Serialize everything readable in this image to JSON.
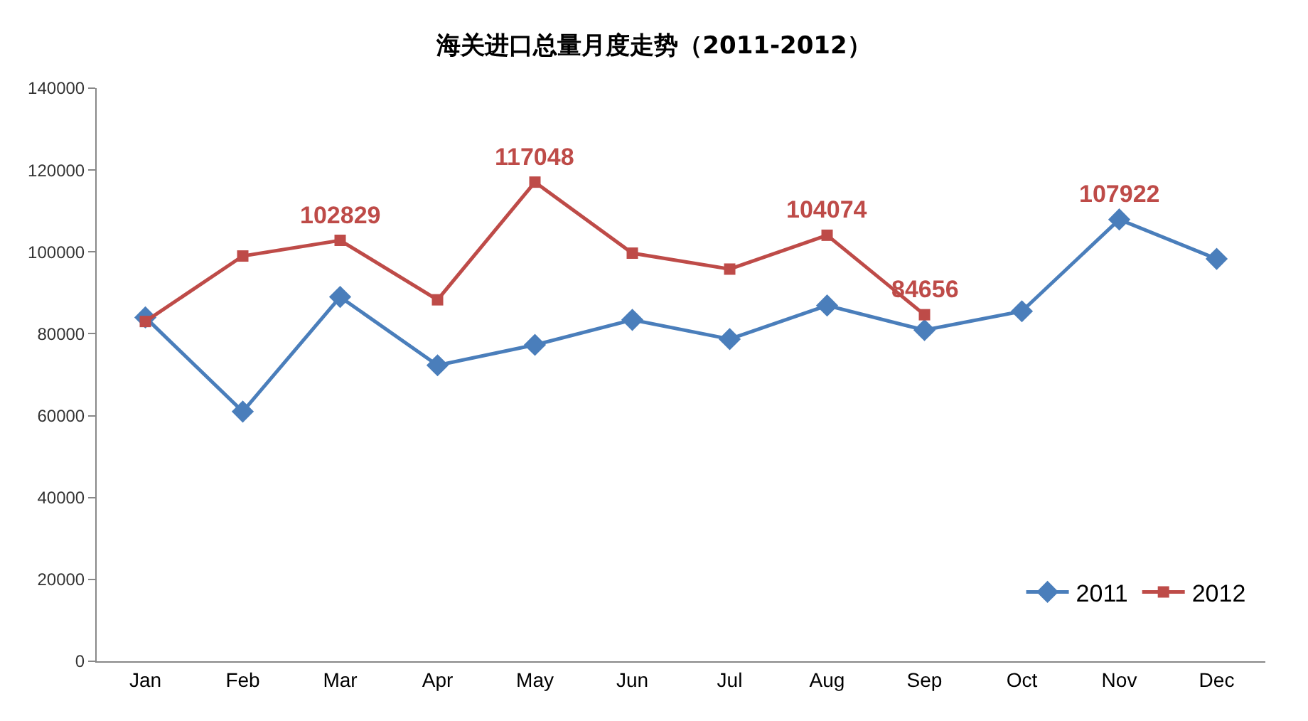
{
  "chart_data": {
    "type": "line",
    "title": "海关进口总量月度走势（2011-2012）",
    "categories": [
      "Jan",
      "Feb",
      "Mar",
      "Apr",
      "May",
      "Jun",
      "Jul",
      "Aug",
      "Sep",
      "Oct",
      "Nov",
      "Dec"
    ],
    "series": [
      {
        "name": "2011",
        "color": "#4a7ebb",
        "marker": "diamond",
        "values": [
          84000,
          61000,
          89000,
          72300,
          77300,
          83400,
          78700,
          86900,
          80900,
          85500,
          107922,
          98300
        ]
      },
      {
        "name": "2012",
        "color": "#be4b48",
        "marker": "square",
        "values": [
          83000,
          99000,
          102829,
          88300,
          117048,
          99700,
          95800,
          104074,
          84656,
          null,
          null,
          null
        ]
      }
    ],
    "annotations": [
      {
        "text": "102829",
        "x": "Mar",
        "y": 102829
      },
      {
        "text": "117048",
        "x": "May",
        "y": 117048
      },
      {
        "text": "104074",
        "x": "Aug",
        "y": 104074
      },
      {
        "text": "84656",
        "x": "Sep",
        "y": 84656
      },
      {
        "text": "107922",
        "x": "Nov",
        "y": 107922
      }
    ],
    "ylim": [
      0,
      140000
    ],
    "yticks": [
      0,
      20000,
      40000,
      60000,
      80000,
      100000,
      120000,
      140000
    ],
    "grid": false,
    "legend": "bottom right",
    "line_style": "solid"
  }
}
